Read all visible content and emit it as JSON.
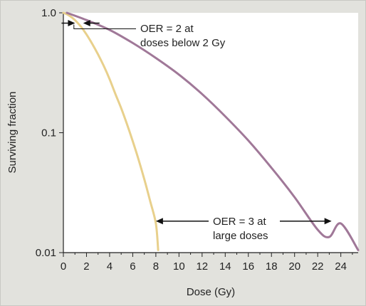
{
  "chart_data": {
    "type": "line",
    "title": "",
    "xlabel": "Dose (Gy)",
    "ylabel": "Surviving fraction",
    "xlim": [
      0,
      25.5
    ],
    "ylim": [
      0.01,
      1.0
    ],
    "yscale": "log",
    "grid": false,
    "legend": "none",
    "x_ticks": [
      0,
      2,
      4,
      6,
      8,
      10,
      12,
      14,
      16,
      18,
      20,
      22,
      24
    ],
    "x_tick_labels": [
      "0",
      "2",
      "4",
      "6",
      "8",
      "10",
      "12",
      "14",
      "16",
      "18",
      "20",
      "22",
      "24"
    ],
    "y_ticks": [
      0.01,
      0.1,
      1.0
    ],
    "y_tick_labels": [
      "0.01",
      "0.1",
      "1.0"
    ],
    "series": [
      {
        "color": "#e8d08c",
        "x": [
          0,
          0.5,
          1,
          1.5,
          2,
          2.5,
          3,
          3.5,
          4,
          4.5,
          5,
          5.5,
          6,
          6.5,
          7,
          7.5,
          8,
          8.2
        ],
        "y": [
          1.0,
          0.95,
          0.87,
          0.77,
          0.66,
          0.55,
          0.45,
          0.36,
          0.28,
          0.21,
          0.16,
          0.118,
          0.085,
          0.06,
          0.041,
          0.027,
          0.0175,
          0.0105
        ]
      },
      {
        "color": "#a07898",
        "x": [
          0.3,
          2,
          4,
          6,
          8,
          10,
          12,
          14,
          16,
          18,
          20,
          22,
          23,
          24,
          25.5
        ],
        "y": [
          1.0,
          0.87,
          0.72,
          0.56,
          0.42,
          0.305,
          0.21,
          0.137,
          0.086,
          0.051,
          0.029,
          0.0155,
          0.0135,
          0.0175,
          0.0105
        ]
      }
    ],
    "annotations": [
      {
        "lines": [
          "OER = 2 at",
          "doses below 2 Gy"
        ],
        "arrow_x": [
          0.15,
          1.65
        ],
        "arrow_y": 0.82
      },
      {
        "lines": [
          "OER = 3 at",
          "large doses"
        ],
        "arrow_x": [
          8.0,
          23.2
        ],
        "arrow_y": 0.0183
      }
    ]
  }
}
